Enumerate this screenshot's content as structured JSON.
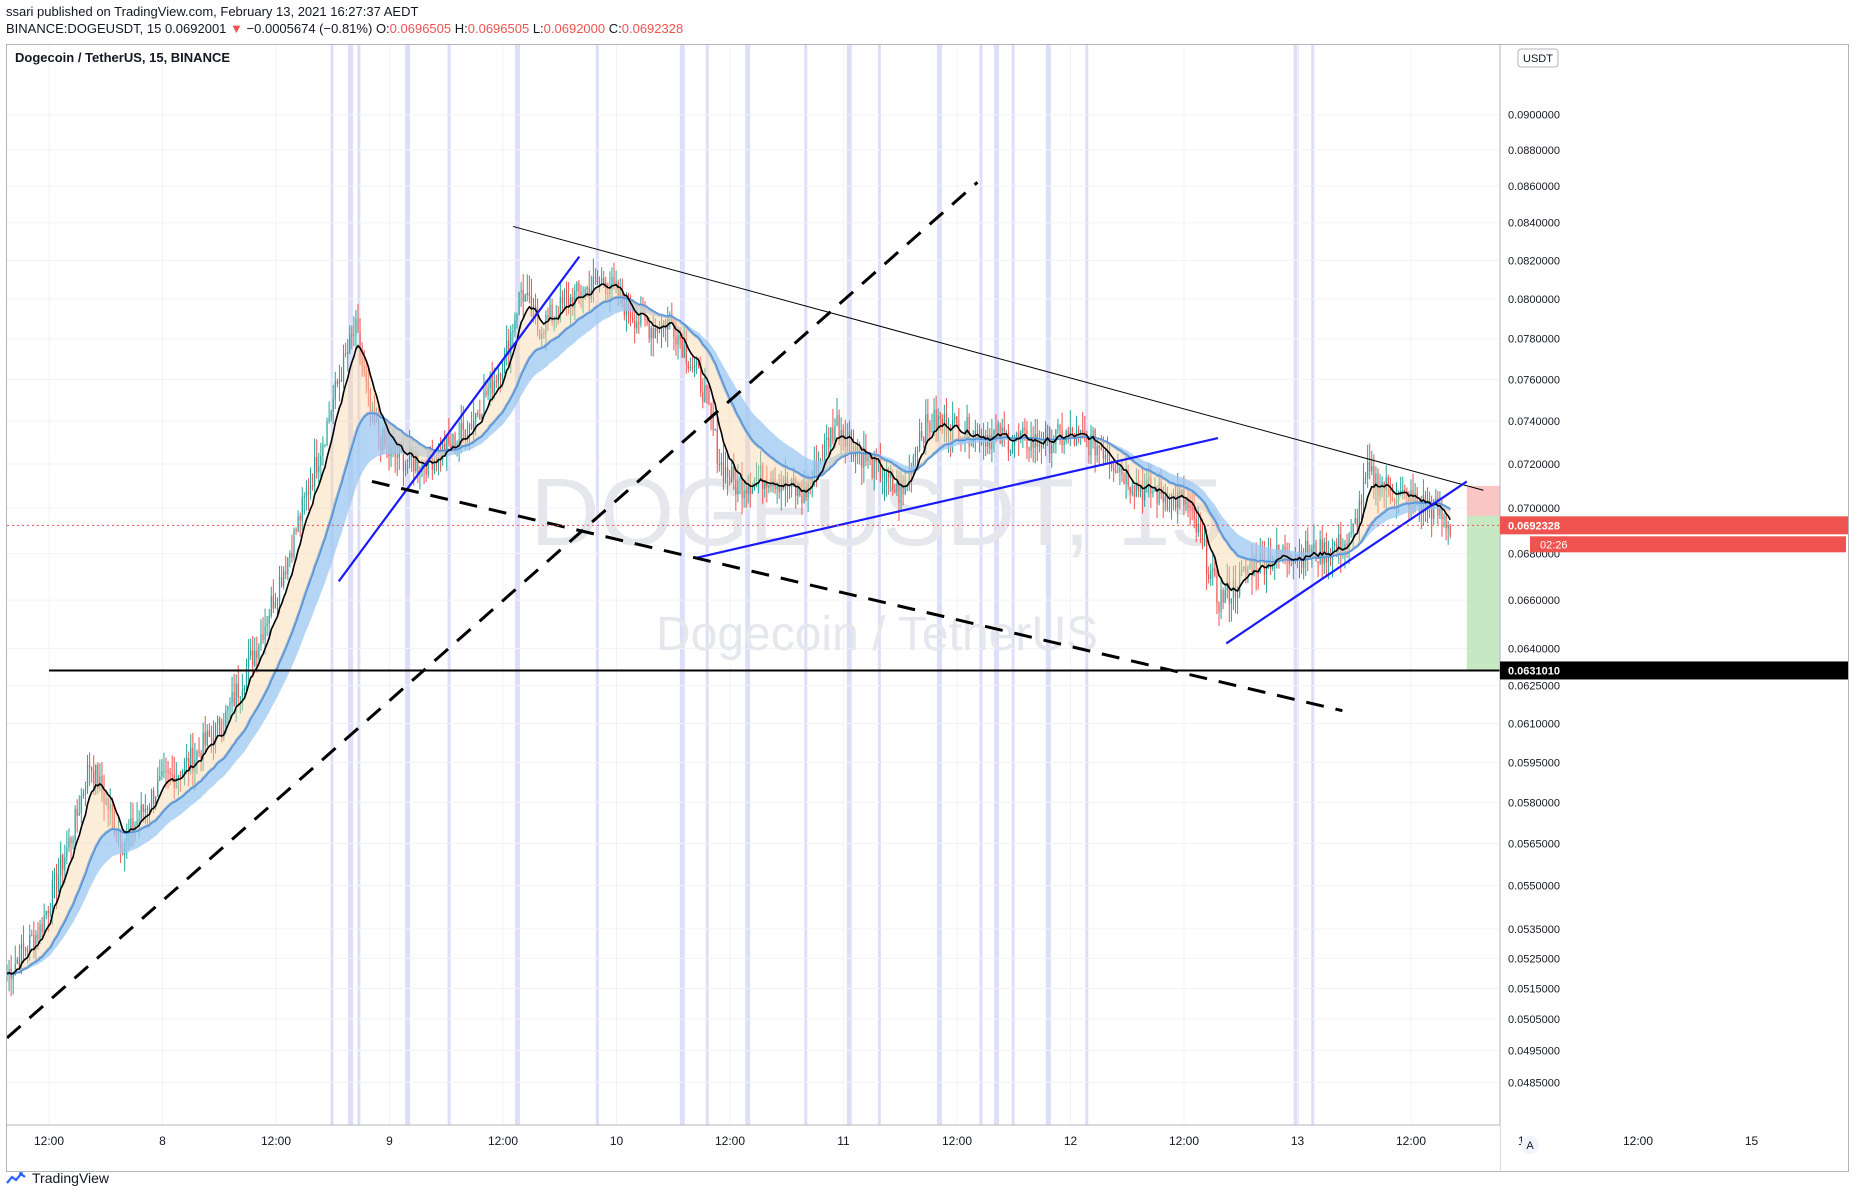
{
  "header": {
    "published": "ssari published on TradingView.com, February 13, 2021 16:27:37 AEDT",
    "symbol": "BINANCE:DOGEUSDT, 15",
    "last": "0.0692001",
    "change": "−0.0005674 (−0.81%)",
    "o_label": "O:",
    "o": "0.0696505",
    "h_label": "H:",
    "h": "0.0696505",
    "l_label": "L:",
    "l": "0.0692000",
    "c_label": "C:",
    "c": "0.0692328"
  },
  "pane_title": "Dogecoin / TetherUS, 15, BINANCE",
  "watermark": {
    "symbol": "DOGEUSDT, 15",
    "name": "Dogecoin / TetherUS"
  },
  "currency_label": "USDT",
  "price_tag": "0.0692328",
  "countdown": "02:26",
  "support_tag": "0.0631010",
  "scale_mode": "A",
  "footer_brand": "TradingView",
  "colors": {
    "up": "#26a69a",
    "down": "#ef5350",
    "ema_fast": "#000000",
    "ribbon": "#4a90e2",
    "support": "#000000",
    "stop": "#f7b6b6",
    "target": "#b8e2b4"
  },
  "chart_data": {
    "type": "candlestick",
    "symbol": "DOGEUSDT",
    "interval": "15",
    "scale": "log",
    "ylim": [
      0.0475,
      0.0935
    ],
    "x_ticks": [
      "12:00",
      "8",
      "12:00",
      "9",
      "12:00",
      "10",
      "12:00",
      "11",
      "12:00",
      "12",
      "12:00",
      "13",
      "12:00",
      "14",
      "12:00",
      "15"
    ],
    "y_ticks": [
      "0.0900000",
      "0.0880000",
      "0.0860000",
      "0.0840000",
      "0.0820000",
      "0.0800000",
      "0.0780000",
      "0.0760000",
      "0.0740000",
      "0.0720000",
      "0.0700000",
      "0.0680000",
      "0.0660000",
      "0.0640000",
      "0.0625000",
      "0.0610000",
      "0.0595000",
      "0.0580000",
      "0.0565000",
      "0.0550000",
      "0.0535000",
      "0.0525000",
      "0.0515000",
      "0.0505000",
      "0.0495000",
      "0.0485000"
    ],
    "close_path": [
      [
        0,
        0.052
      ],
      [
        4,
        0.0535
      ],
      [
        8,
        0.057
      ],
      [
        10,
        0.0595
      ],
      [
        14,
        0.0565
      ],
      [
        18,
        0.0585
      ],
      [
        22,
        0.0595
      ],
      [
        26,
        0.061
      ],
      [
        30,
        0.064
      ],
      [
        34,
        0.068
      ],
      [
        38,
        0.073
      ],
      [
        40,
        0.076
      ],
      [
        42,
        0.0785
      ],
      [
        44,
        0.074
      ],
      [
        46,
        0.0725
      ],
      [
        50,
        0.072
      ],
      [
        54,
        0.073
      ],
      [
        56,
        0.074
      ],
      [
        60,
        0.077
      ],
      [
        62,
        0.0805
      ],
      [
        64,
        0.0785
      ],
      [
        68,
        0.08
      ],
      [
        72,
        0.081
      ],
      [
        76,
        0.079
      ],
      [
        78,
        0.0785
      ],
      [
        80,
        0.079
      ],
      [
        84,
        0.0755
      ],
      [
        86,
        0.072
      ],
      [
        88,
        0.071
      ],
      [
        92,
        0.0715
      ],
      [
        96,
        0.0705
      ],
      [
        100,
        0.074
      ],
      [
        104,
        0.072
      ],
      [
        108,
        0.0705
      ],
      [
        110,
        0.0735
      ],
      [
        112,
        0.074
      ],
      [
        116,
        0.0735
      ],
      [
        120,
        0.0732
      ],
      [
        124,
        0.073
      ],
      [
        128,
        0.0733
      ],
      [
        132,
        0.0728
      ],
      [
        136,
        0.071
      ],
      [
        140,
        0.0705
      ],
      [
        142,
        0.0703
      ],
      [
        144,
        0.0685
      ],
      [
        146,
        0.066
      ],
      [
        148,
        0.0665
      ],
      [
        150,
        0.0675
      ],
      [
        154,
        0.068
      ],
      [
        158,
        0.068
      ],
      [
        162,
        0.0685
      ],
      [
        164,
        0.0715
      ],
      [
        168,
        0.0705
      ],
      [
        172,
        0.07
      ],
      [
        174,
        0.0692
      ]
    ],
    "series": [
      {
        "name": "",
        "type": "ema_fast"
      },
      {
        "name": "",
        "type": "ema_ribbon"
      }
    ],
    "lines": [
      {
        "type": "horizontal",
        "price": 0.063101
      },
      {
        "type": "trend",
        "from": [
          61,
          0.0838
        ],
        "to": [
          178,
          0.0708
        ]
      },
      {
        "type": "trend",
        "from": [
          40,
          0.0668
        ],
        "to": [
          69,
          0.0822
        ]
      },
      {
        "type": "trend",
        "from": [
          83,
          0.0678
        ],
        "to": [
          146,
          0.0732
        ]
      },
      {
        "type": "trend",
        "from": [
          147,
          0.0642
        ],
        "to": [
          176,
          0.0712
        ]
      },
      {
        "type": "trend-dashed",
        "from": [
          0,
          0.0499
        ],
        "to": [
          117,
          0.0862
        ]
      },
      {
        "type": "trend-dashed",
        "from": [
          44,
          0.0712
        ],
        "to": [
          161,
          0.0615
        ]
      }
    ],
    "position": {
      "side": "short",
      "entry": 0.0696505,
      "stop": 0.071,
      "target": 0.063101
    },
    "highlighted_time_zones": true
  }
}
